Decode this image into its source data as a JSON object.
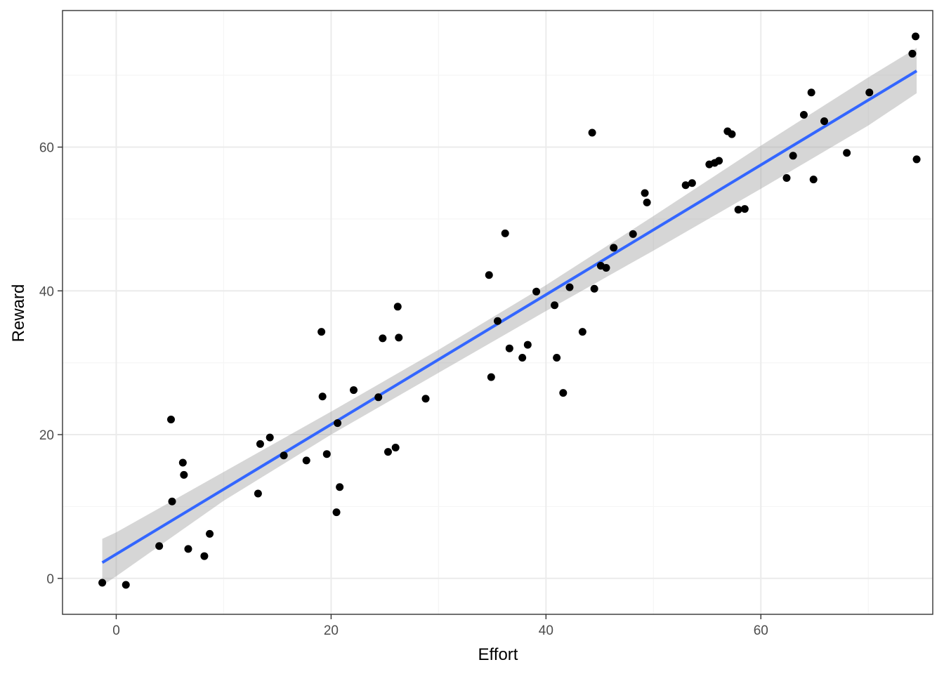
{
  "chart_data": {
    "type": "scatter",
    "title": "",
    "xlabel": "Effort",
    "ylabel": "Reward",
    "xlim": [
      -5,
      76
    ],
    "ylim": [
      -5,
      79
    ],
    "x_ticks": [
      0,
      20,
      40,
      60
    ],
    "x_tick_labels": [
      "0",
      "20",
      "40",
      "60"
    ],
    "y_ticks": [
      0,
      20,
      40,
      60
    ],
    "y_tick_labels": [
      "0",
      "20",
      "40",
      "60"
    ],
    "x_minor": [
      10,
      30,
      50,
      70
    ],
    "y_minor": [
      10,
      30,
      50,
      70
    ],
    "grid": true,
    "legend": "none",
    "colors": {
      "points": "#000000",
      "fit_line": "#3366ff",
      "confidence_band": "#999999",
      "panel_border": "#333333",
      "grid_major": "#ebebeb",
      "grid_minor": "#f5f5f5"
    },
    "points": {
      "x": [
        -1.3,
        0.9,
        4.0,
        5.1,
        5.2,
        6.2,
        6.3,
        6.7,
        8.2,
        8.7,
        13.2,
        13.4,
        14.3,
        15.6,
        17.7,
        19.1,
        19.2,
        19.6,
        20.5,
        20.6,
        20.8,
        22.1,
        24.4,
        24.8,
        25.3,
        26.0,
        26.2,
        26.3,
        28.8,
        34.7,
        34.9,
        35.5,
        36.2,
        36.6,
        37.8,
        38.3,
        39.1,
        40.8,
        41.0,
        41.6,
        42.2,
        43.4,
        44.3,
        44.5,
        45.1,
        45.6,
        46.3,
        48.1,
        49.2,
        49.4,
        53.0,
        53.6,
        55.2,
        55.7,
        56.1,
        56.9,
        57.3,
        57.9,
        58.5,
        62.4,
        63.0,
        64.0,
        64.7,
        64.9,
        65.9,
        68.0,
        70.1,
        74.1,
        74.4,
        74.5
      ],
      "y": [
        -0.6,
        -0.9,
        4.5,
        22.1,
        10.7,
        16.1,
        14.4,
        4.1,
        3.1,
        6.2,
        11.8,
        18.7,
        19.6,
        17.1,
        16.4,
        34.3,
        25.3,
        17.3,
        9.2,
        21.6,
        12.7,
        26.2,
        25.2,
        33.4,
        17.6,
        18.2,
        37.8,
        33.5,
        25.0,
        42.2,
        28.0,
        35.8,
        48.0,
        32.0,
        30.7,
        32.5,
        39.9,
        38.0,
        30.7,
        25.8,
        40.5,
        34.3,
        62.0,
        40.3,
        43.5,
        43.2,
        46.0,
        47.9,
        53.6,
        52.3,
        54.7,
        55.0,
        57.6,
        57.8,
        58.1,
        62.2,
        61.8,
        51.3,
        51.4,
        55.7,
        58.8,
        64.5,
        67.6,
        55.5,
        63.6,
        59.2,
        67.6,
        73.0,
        75.4,
        58.3
      ]
    },
    "fit_line": {
      "method": "lm",
      "x": [
        -1.3,
        74.5
      ],
      "y": [
        2.2,
        70.6
      ]
    },
    "confidence_band": {
      "x": [
        -1.3,
        0,
        10,
        20,
        30,
        40,
        50,
        60,
        70,
        74.5
      ],
      "lower": [
        -1.0,
        0.3,
        10.8,
        20.0,
        28.6,
        37.2,
        45.6,
        54.2,
        63.0,
        67.5
      ],
      "upper": [
        5.5,
        6.4,
        14.8,
        23.2,
        31.8,
        40.8,
        50.4,
        60.2,
        69.7,
        73.8
      ]
    }
  }
}
